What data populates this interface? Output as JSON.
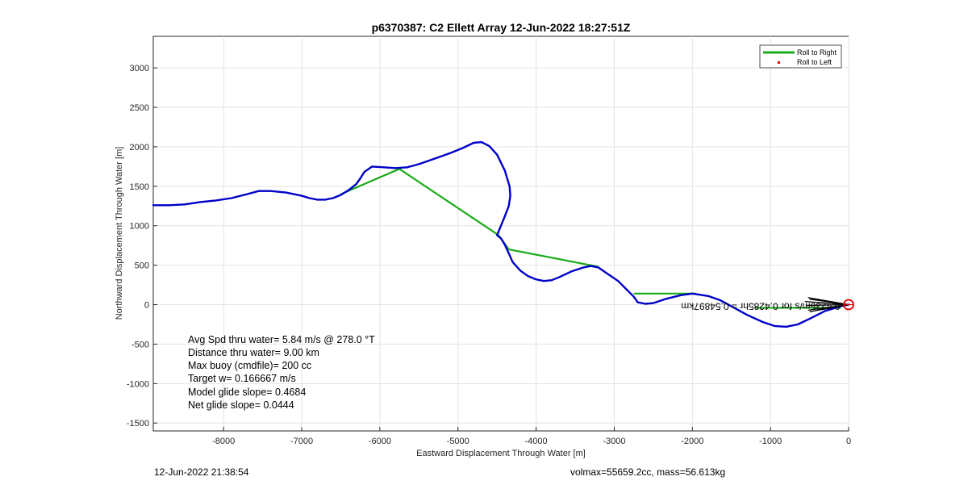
{
  "chart_data": {
    "type": "line",
    "title": "p6370387: C2 Ellett Array 12-Jun-2022 18:27:51Z",
    "xlabel": "Eastward Displacement Through Water [m]",
    "ylabel": "Northward Displacement Through Water [m]",
    "xlim": [
      -8900,
      0
    ],
    "ylim": [
      -1600,
      3400
    ],
    "xticks": [
      -8000,
      -7000,
      -6000,
      -5000,
      -4000,
      -3000,
      -2000,
      -1000,
      0
    ],
    "yticks": [
      -1500,
      -1000,
      -500,
      0,
      500,
      1000,
      1500,
      2000,
      2500,
      3000
    ],
    "grid": true,
    "legend": {
      "placement": "top-right",
      "entries": [
        "Roll to Right",
        "Roll to Left"
      ]
    },
    "series": [
      {
        "name": "",
        "color": "#0000c8",
        "x": [
          0,
          -100,
          -300,
          -500,
          -650,
          -800,
          -950,
          -1100,
          -1300,
          -1500,
          -1650,
          -1800,
          -2000,
          -2150,
          -2350,
          -2500,
          -2600,
          -2700,
          -2750,
          -2850,
          -2950,
          -3100,
          -3200,
          -3300,
          -3400,
          -3550,
          -3700,
          -3800,
          -3900,
          -4000,
          -4100,
          -4200,
          -4300,
          -4350,
          -4400,
          -4450,
          -4500,
          -4450,
          -4400,
          -4350,
          -4330,
          -4340,
          -4400,
          -4500,
          -4600,
          -4700,
          -4800,
          -4950,
          -5100,
          -5300,
          -5500,
          -5650,
          -5800,
          -5950,
          -6100,
          -6200,
          -6250,
          -6300,
          -6400,
          -6500,
          -6600,
          -6700,
          -6800,
          -6900,
          -7000,
          -7200,
          -7400,
          -7550,
          -7700,
          -7900,
          -8100,
          -8300,
          -8500,
          -8700,
          -8900
        ],
        "y": [
          0,
          -20,
          -80,
          -180,
          -250,
          -280,
          -270,
          -220,
          -130,
          -20,
          60,
          110,
          140,
          120,
          70,
          20,
          10,
          30,
          100,
          200,
          300,
          400,
          470,
          490,
          470,
          420,
          350,
          310,
          300,
          320,
          360,
          430,
          540,
          650,
          760,
          840,
          880,
          1000,
          1120,
          1250,
          1380,
          1500,
          1700,
          1900,
          2010,
          2060,
          2050,
          1980,
          1920,
          1850,
          1780,
          1740,
          1730,
          1740,
          1750,
          1680,
          1600,
          1530,
          1450,
          1390,
          1350,
          1330,
          1330,
          1350,
          1380,
          1420,
          1440,
          1440,
          1400,
          1350,
          1320,
          1300,
          1270,
          1260,
          1260
        ]
      },
      {
        "name": "Roll to Right",
        "color": "#1aab1a",
        "segments": [
          [
            [
              -6500,
              1400
            ],
            [
              -5750,
              1720
            ]
          ],
          [
            [
              -5750,
              1720
            ],
            [
              -4480,
              880
            ]
          ],
          [
            [
              -4480,
              880
            ],
            [
              -4350,
              700
            ]
          ],
          [
            [
              -4350,
              700
            ],
            [
              -3200,
              480
            ]
          ],
          [
            [
              -2750,
              140
            ],
            [
              -1950,
              140
            ]
          ],
          [
            [
              -1200,
              -40
            ],
            [
              -100,
              -40
            ]
          ]
        ]
      },
      {
        "name": "Roll to Left",
        "color": "#ff0000",
        "x": [],
        "y": []
      }
    ],
    "annotations": [
      {
        "text": "0.4235m/s for 0.4285hr = 0.54897km",
        "x": -110,
        "y": 20,
        "rotated": 180
      }
    ],
    "marker": {
      "x": 0,
      "y": 0,
      "color": "#e00000"
    }
  },
  "stats": [
    "Avg Spd thru water=  5.84 m/s @ 278.0 °T",
    "Distance thru water=  9.00 km",
    "Max buoy (cmdfile)= 200 cc",
    "Target w= 0.166667 m/s",
    "Model glide slope= 0.4684",
    "Net glide slope= 0.0444"
  ],
  "footer": {
    "left": "12-Jun-2022 21:38:54",
    "right": "volmax=55659.2cc, mass=56.613kg"
  }
}
